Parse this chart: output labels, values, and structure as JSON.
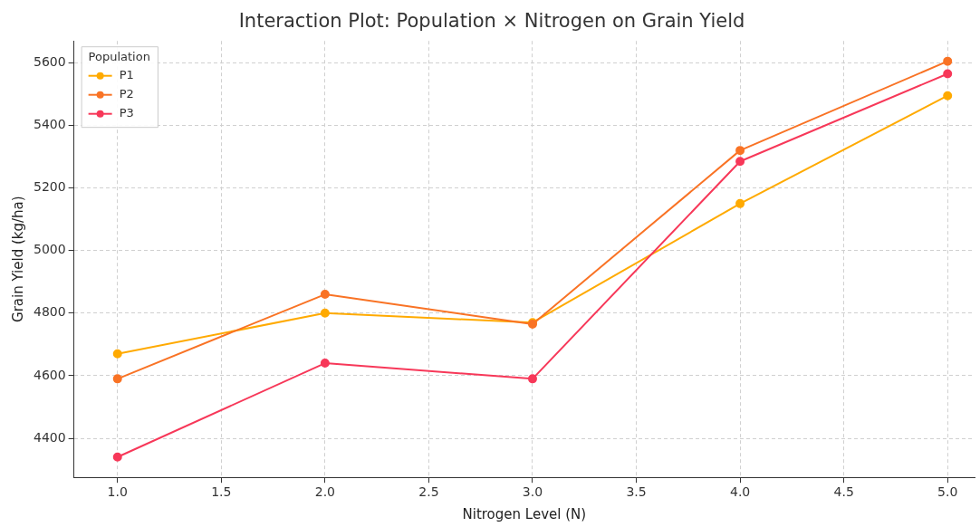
{
  "chart_data": {
    "type": "line",
    "title": "Interaction Plot: Population × Nitrogen on Grain Yield",
    "xlabel": "Nitrogen Level (N)",
    "ylabel": "Grain Yield (kg/ha)",
    "legend_title": "Population",
    "legend": "top left",
    "grid": true,
    "marker": "circle",
    "line_style": "solid",
    "x": [
      1,
      2,
      3,
      4,
      5
    ],
    "series": [
      {
        "name": "P1",
        "color": "#ffaa00",
        "values": [
          4670,
          4800,
          4770,
          5150,
          5495
        ]
      },
      {
        "name": "P2",
        "color": "#f97325",
        "values": [
          4590,
          4860,
          4765,
          5320,
          5605
        ]
      },
      {
        "name": "P3",
        "color": "#f73859",
        "values": [
          4340,
          4640,
          4590,
          5285,
          5565
        ]
      }
    ],
    "xlim": [
      0.79,
      5.13
    ],
    "ylim": [
      4275,
      5670
    ],
    "xticks": [
      {
        "value": 1,
        "label": "1.0"
      },
      {
        "value": 1.5,
        "label": "1.5"
      },
      {
        "value": 2,
        "label": "2.0"
      },
      {
        "value": 2.5,
        "label": "2.5"
      },
      {
        "value": 3,
        "label": "3.0"
      },
      {
        "value": 3.5,
        "label": "3.5"
      },
      {
        "value": 4,
        "label": "4.0"
      },
      {
        "value": 4.5,
        "label": "4.5"
      },
      {
        "value": 5,
        "label": "5.0"
      }
    ],
    "yticks": [
      4400,
      4600,
      4800,
      5000,
      5200,
      5400,
      5600
    ]
  }
}
